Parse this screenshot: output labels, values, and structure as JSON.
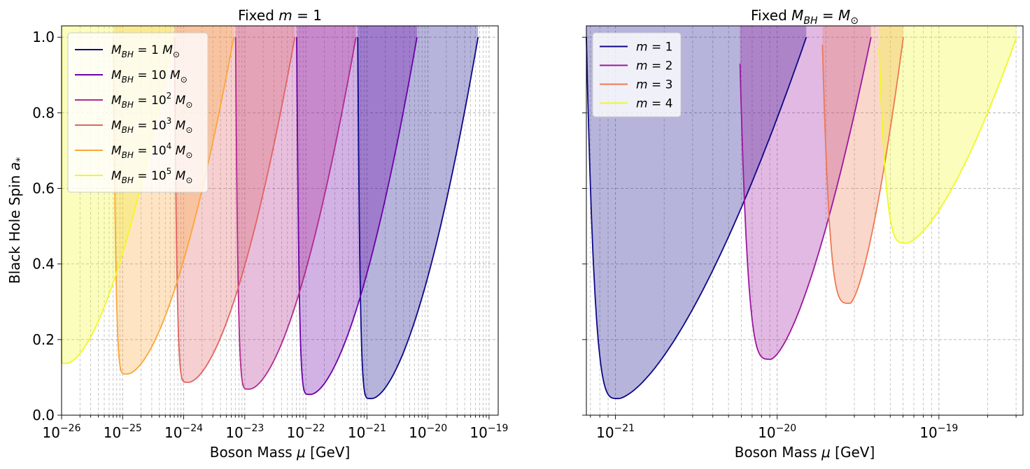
{
  "chart_data": [
    {
      "type": "area",
      "title": "Fixed m = 1",
      "title_parts": {
        "prefix": "Fixed ",
        "var": "m",
        "rest": " = 1"
      },
      "xlabel": "Boson Mass μ [GeV]",
      "xlabel_parts": {
        "text": "Boson Mass ",
        "var": "μ",
        "unit": " [GeV]"
      },
      "ylabel": "Black Hole Spin a*",
      "ylabel_parts": {
        "text": "Black Hole Spin ",
        "var": "a",
        "sub": "*"
      },
      "xscale": "log",
      "xlim_log10": [
        -26,
        -18.85
      ],
      "ylim": [
        0,
        1.03
      ],
      "xticks": [
        {
          "log10": -26,
          "base": "10",
          "exp": "−26"
        },
        {
          "log10": -25,
          "base": "10",
          "exp": "−25"
        },
        {
          "log10": -24,
          "base": "10",
          "exp": "−24"
        },
        {
          "log10": -23,
          "base": "10",
          "exp": "−23"
        },
        {
          "log10": -22,
          "base": "10",
          "exp": "−22"
        },
        {
          "log10": -21,
          "base": "10",
          "exp": "−21"
        },
        {
          "log10": -20,
          "base": "10",
          "exp": "−20"
        },
        {
          "log10": -19,
          "base": "10",
          "exp": "−19"
        }
      ],
      "yticks": [
        {
          "value": 0.0,
          "label": "0.0"
        },
        {
          "value": 0.2,
          "label": "0.2"
        },
        {
          "value": 0.4,
          "label": "0.4"
        },
        {
          "value": 0.6,
          "label": "0.6"
        },
        {
          "value": 0.8,
          "label": "0.8"
        },
        {
          "value": 1.0,
          "label": "1.0"
        }
      ],
      "grid": true,
      "legend_position": "upper-left",
      "series": [
        {
          "name": "M_BH = 1 M☉",
          "color": "#0d0887",
          "label_exp": "",
          "label_coef": "1",
          "shift_log10": 0,
          "min_a": 0.044
        },
        {
          "name": "M_BH = 10 M☉",
          "color": "#6a00a8",
          "label_exp": "",
          "label_coef": "10",
          "shift_log10": -1,
          "min_a": 0.055
        },
        {
          "name": "M_BH = 10^2 M☉",
          "color": "#b12a90",
          "label_exp": "2",
          "label_coef": "10",
          "shift_log10": -2,
          "min_a": 0.069
        },
        {
          "name": "M_BH = 10^3 M☉",
          "color": "#e16462",
          "label_exp": "3",
          "label_coef": "10",
          "shift_log10": -3,
          "min_a": 0.087
        },
        {
          "name": "M_BH = 10^4 M☉",
          "color": "#fca636",
          "label_exp": "4",
          "label_coef": "10",
          "shift_log10": -4,
          "min_a": 0.109
        },
        {
          "name": "M_BH = 10^5 M☉",
          "color": "#f0f921",
          "label_exp": "5",
          "label_coef": "10",
          "shift_log10": -5,
          "min_a": 0.137
        }
      ]
    },
    {
      "type": "area",
      "title": "Fixed M_BH = M☉",
      "title_parts": {
        "prefix": "Fixed ",
        "var": "M",
        "sub": "BH",
        "rest": " = ",
        "var2": "M",
        "sun": "⊙"
      },
      "xlabel": "Boson Mass μ [GeV]",
      "xlabel_parts": {
        "text": "Boson Mass ",
        "var": "μ",
        "unit": " [GeV]"
      },
      "xscale": "log",
      "xlim_log10": [
        -21.18,
        -18.48
      ],
      "ylim": [
        0,
        1.03
      ],
      "xticks": [
        {
          "log10": -21,
          "base": "10",
          "exp": "−21"
        },
        {
          "log10": -20,
          "base": "10",
          "exp": "−20"
        },
        {
          "log10": -19,
          "base": "10",
          "exp": "−19"
        }
      ],
      "grid": true,
      "legend_position": "upper-left",
      "series": [
        {
          "name": "m = 1",
          "color": "#0d0887",
          "m": 1
        },
        {
          "name": "m = 2",
          "color": "#9c179e",
          "m": 2
        },
        {
          "name": "m = 3",
          "color": "#ed7953",
          "m": 3
        },
        {
          "name": "m = 4",
          "color": "#f0f921",
          "m": 4
        }
      ]
    }
  ]
}
